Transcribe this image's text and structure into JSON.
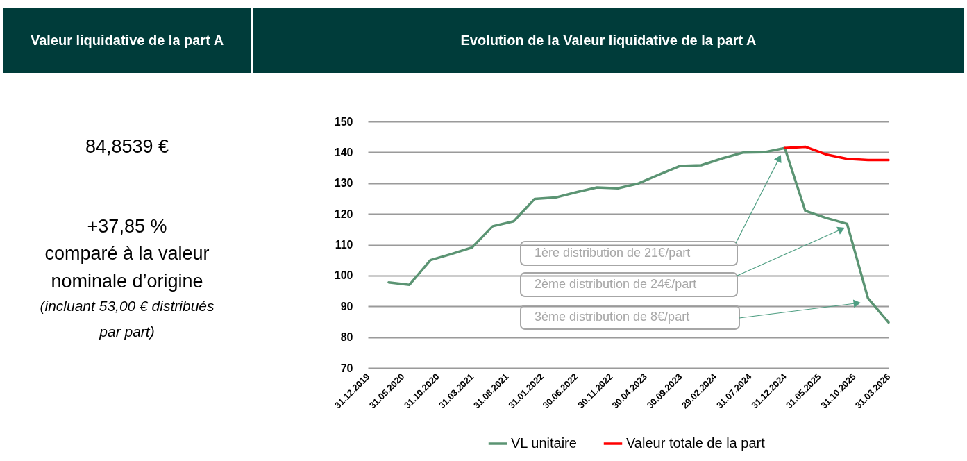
{
  "chart_data": [
    {
      "type": "other",
      "title": "Valeur liquidative de la part A",
      "annotations": [
        "84,8539 €",
        "+37,85 %",
        "comparé à la valeur",
        "nominale d’origine",
        "(incluant 53,00 € distribués",
        "par part)"
      ]
    },
    {
      "type": "line",
      "title": "Evolution de la Valeur liquidative de la part A",
      "x": [
        "2020-03-31",
        "2020-06-30",
        "2020-09-30",
        "2020-12-31",
        "2021-03-31",
        "2021-06-30",
        "2021-09-30",
        "2021-12-31",
        "2022-03-31",
        "2022-06-30",
        "2022-09-30",
        "2022-12-31",
        "2023-03-31",
        "2023-06-30",
        "2023-09-30",
        "2023-12-31",
        "2024-03-31",
        "2024-06-30",
        "2024-09-30",
        "2024-12-31",
        "2025-03-31",
        "2025-06-30",
        "2025-09-30",
        "2025-12-31",
        "2026-03-31"
      ],
      "series": [
        {
          "name": "VL unitaire",
          "color": "#5b9473",
          "values": [
            97.8,
            97.0,
            105.0,
            107.0,
            109.1,
            116.0,
            117.6,
            124.9,
            125.3,
            127.0,
            128.6,
            128.3,
            129.9,
            132.8,
            135.6,
            135.8,
            138.0,
            139.9,
            140.0,
            141.4,
            121.0,
            118.7,
            116.8,
            92.6,
            84.8
          ]
        },
        {
          "name": "Valeur totale de la part",
          "color": "#ff0000",
          "values": [
            null,
            null,
            null,
            null,
            null,
            null,
            null,
            null,
            null,
            null,
            null,
            null,
            null,
            null,
            null,
            null,
            null,
            null,
            null,
            141.4,
            141.8,
            139.3,
            137.9,
            137.5,
            137.5
          ]
        }
      ],
      "xlim": [
        "2019-12-31",
        "2026-03-31"
      ],
      "xticks": [
        {
          "value": "2019-12-31",
          "label": "31.12.2019"
        },
        {
          "value": "2020-05-31",
          "label": "31.05.2020"
        },
        {
          "value": "2020-10-31",
          "label": "31.10.2020"
        },
        {
          "value": "2021-03-31",
          "label": "31.03.2021"
        },
        {
          "value": "2021-08-31",
          "label": "31.08.2021"
        },
        {
          "value": "2022-01-31",
          "label": "31.01.2022"
        },
        {
          "value": "2022-06-30",
          "label": "30.06.2022"
        },
        {
          "value": "2022-11-30",
          "label": "30.11.2022"
        },
        {
          "value": "2023-04-30",
          "label": "30.04.2023"
        },
        {
          "value": "2023-09-30",
          "label": "30.09.2023"
        },
        {
          "value": "2024-02-29",
          "label": "29.02.2024"
        },
        {
          "value": "2024-07-31",
          "label": "31.07.2024"
        },
        {
          "value": "2024-12-31",
          "label": "31.12.2024"
        },
        {
          "value": "2025-05-31",
          "label": "31.05.2025"
        },
        {
          "value": "2025-10-31",
          "label": "31.10.2025"
        },
        {
          "value": "2026-03-31",
          "label": "31.03.2026"
        }
      ],
      "ylim": [
        70,
        150
      ],
      "yticks": [
        70,
        80,
        90,
        100,
        110,
        120,
        130,
        140,
        150
      ],
      "grid": "y",
      "legend": "bottom",
      "annotations": [
        "1ère distribution de 21€/part",
        "2ème distribution de 24€/part",
        "3ème distribution de 8€/part"
      ]
    }
  ]
}
